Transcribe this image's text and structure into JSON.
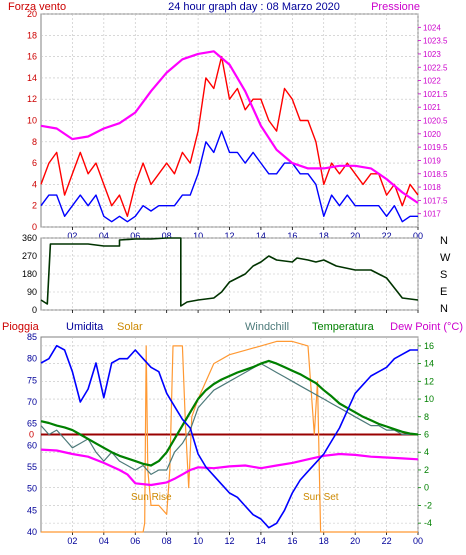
{
  "header": {
    "left_title": "Forza vento",
    "center_title": "24 hour graph day : 08 Marzo 2020",
    "right_title": "Pressione"
  },
  "panel3_header": {
    "pioggia": "Pioggia",
    "umidita": "Umidita",
    "solar": "Solar",
    "windchill": "Windchill",
    "temperatura": "Temperatura",
    "dewpoint": "Dew Point (°C)"
  },
  "annotations": {
    "sunrise": "Sun Rise",
    "sunset": "Sun Set"
  },
  "colors": {
    "wind_gust": "#ff0000",
    "wind_avg": "#0000ff",
    "pressure": "#ff00ff",
    "direction": "#003300",
    "humidity": "#0000ff",
    "solar": "#ff9933",
    "windchill": "#4d7a7a",
    "temperature": "#008000",
    "dewpoint": "#ff00ff",
    "rain": "#990000",
    "axis_left": "#cc0000",
    "axis_right": "#cc00cc",
    "axis_blue": "#000099",
    "axis_green": "#008000",
    "grid": "#c0c0c0"
  },
  "chart_data": [
    {
      "type": "line",
      "title": "24 hour graph day : 08 Marzo 2020",
      "x_ticks": [
        "02",
        "04",
        "06",
        "08",
        "10",
        "12",
        "14",
        "16",
        "18",
        "20",
        "22",
        "00"
      ],
      "xlim": [
        0,
        24
      ],
      "ylabel_left": "Forza vento",
      "ylim_left": [
        0,
        20
      ],
      "y_ticks_left": [
        0,
        2,
        4,
        6,
        8,
        10,
        12,
        14,
        16,
        18,
        20
      ],
      "ylabel_right": "Pressione",
      "ylim_right": [
        1016.5,
        1024.5
      ],
      "y_ticks_right": [
        1017,
        1017.5,
        1018,
        1018.5,
        1019,
        1019.5,
        1020,
        1020.5,
        1021,
        1021.5,
        1022,
        1022.5,
        1023,
        1023.5,
        1024
      ],
      "series": [
        {
          "name": "Forza vento",
          "color_key": "wind_gust",
          "x": [
            0,
            0.5,
            1,
            1.5,
            2,
            2.5,
            3,
            3.5,
            4,
            4.5,
            5,
            5.5,
            6,
            6.5,
            7,
            7.5,
            8,
            8.5,
            9,
            9.5,
            10,
            10.5,
            11,
            11.5,
            12,
            12.5,
            13,
            13.5,
            14,
            14.5,
            15,
            15.5,
            16,
            16.5,
            17,
            17.5,
            18,
            18.5,
            19,
            19.5,
            20,
            20.5,
            21,
            21.5,
            22,
            22.5,
            23,
            23.5,
            24
          ],
          "y": [
            4,
            6,
            7,
            3,
            5,
            7,
            5,
            6,
            4,
            2,
            3,
            1,
            4,
            6,
            4,
            5,
            6,
            5,
            7,
            6,
            9,
            14,
            13,
            16,
            12,
            13,
            11,
            12,
            12,
            10,
            9,
            13,
            12,
            10,
            10,
            8,
            4,
            6,
            5,
            6,
            5,
            4,
            5,
            5,
            3,
            4,
            2,
            4,
            3
          ]
        },
        {
          "name": "",
          "color_key": "wind_avg",
          "x": [
            0,
            0.5,
            1,
            1.5,
            2,
            2.5,
            3,
            3.5,
            4,
            4.5,
            5,
            5.5,
            6,
            6.5,
            7,
            7.5,
            8,
            8.5,
            9,
            9.5,
            10,
            10.5,
            11,
            11.5,
            12,
            12.5,
            13,
            13.5,
            14,
            14.5,
            15,
            15.5,
            16,
            16.5,
            17,
            17.5,
            18,
            18.5,
            19,
            19.5,
            20,
            20.5,
            21,
            21.5,
            22,
            22.5,
            23,
            23.5,
            24
          ],
          "y": [
            2,
            3,
            3,
            1,
            2,
            3,
            2,
            3,
            1,
            0.5,
            1,
            0.5,
            1,
            2,
            1.5,
            2,
            2,
            2,
            3,
            3,
            5,
            8,
            7,
            9,
            7,
            7,
            6,
            7,
            6,
            5,
            5,
            6,
            6,
            5,
            5,
            4,
            1,
            3,
            2,
            3,
            2,
            2,
            2,
            2,
            1,
            2,
            0.5,
            1,
            1
          ]
        },
        {
          "name": "Pressione",
          "axis": "right",
          "color_key": "pressure",
          "x": [
            0,
            1,
            2,
            3,
            4,
            5,
            6,
            7,
            8,
            9,
            10,
            11,
            12,
            13,
            14,
            15,
            16,
            17,
            18,
            19,
            20,
            21,
            22,
            23,
            24
          ],
          "y": [
            1020.3,
            1020.2,
            1019.8,
            1019.9,
            1020.2,
            1020.4,
            1020.8,
            1021.6,
            1022.3,
            1022.8,
            1023.0,
            1023.1,
            1022.6,
            1021.6,
            1020.3,
            1019.4,
            1018.9,
            1018.7,
            1018.7,
            1018.8,
            1018.8,
            1018.7,
            1018.3,
            1017.8,
            1017.4
          ]
        }
      ]
    },
    {
      "type": "line",
      "xlim": [
        0,
        24
      ],
      "ylim": [
        0,
        360
      ],
      "y_ticks": [
        0,
        90,
        180,
        270,
        360
      ],
      "right_labels": [
        "N",
        "W",
        "S",
        "E",
        "N"
      ],
      "series": [
        {
          "name": "",
          "color_key": "direction",
          "x": [
            0,
            0.4,
            0.6,
            2,
            3,
            4,
            5,
            5,
            6,
            7,
            8,
            8.9,
            8.9,
            9.3,
            10,
            11,
            11.5,
            12,
            13,
            13.5,
            14,
            14.5,
            15,
            16,
            16.3,
            17,
            17.5,
            18,
            18.8,
            20,
            21,
            21.5,
            22,
            23,
            24
          ],
          "y": [
            50,
            30,
            330,
            330,
            330,
            320,
            320,
            350,
            355,
            355,
            360,
            360,
            20,
            40,
            50,
            60,
            90,
            140,
            180,
            220,
            240,
            270,
            250,
            240,
            260,
            250,
            240,
            250,
            220,
            200,
            200,
            180,
            160,
            60,
            50
          ]
        }
      ]
    },
    {
      "type": "line",
      "xlim": [
        0,
        24
      ],
      "ylabel_left": "Umidita",
      "ylim_left": [
        40,
        85
      ],
      "y_ticks_left": [
        40,
        45,
        50,
        55,
        60,
        65,
        70,
        75,
        80,
        85
      ],
      "ylabel_right": "Dew Point (°C)",
      "ylim_right": [
        -5,
        17
      ],
      "y_ticks_right": [
        -4,
        -2,
        0,
        2,
        4,
        6,
        8,
        10,
        12,
        14,
        16
      ],
      "rain_label": "0",
      "series": [
        {
          "name": "Umidita",
          "axis": "left",
          "color_key": "humidity",
          "x": [
            0,
            0.5,
            1,
            1.5,
            2,
            2.5,
            3,
            3.5,
            4,
            4.5,
            5,
            5.5,
            6,
            6.5,
            7,
            7.5,
            8,
            8.5,
            9,
            9.5,
            10,
            10.5,
            11,
            11.5,
            12,
            12.5,
            13,
            13.5,
            14,
            14.5,
            15,
            15.5,
            16,
            16.5,
            17,
            17.5,
            18,
            18.5,
            19,
            19.5,
            20,
            20.5,
            21,
            21.5,
            22,
            22.5,
            23,
            23.5,
            24
          ],
          "y": [
            79,
            80,
            83,
            82,
            77,
            70,
            73,
            79,
            71,
            79,
            80,
            80,
            82,
            80,
            78,
            77,
            72,
            69,
            66,
            64,
            58,
            55,
            53,
            51,
            49,
            48,
            46,
            44,
            43,
            41,
            42,
            45,
            49,
            52,
            54,
            56,
            58,
            61,
            64,
            68,
            72,
            74,
            76,
            77,
            78,
            80,
            81,
            82,
            82
          ]
        },
        {
          "name": "Solar",
          "axis": "right",
          "color_key": "solar",
          "x": [
            0,
            6.5,
            6.6,
            6.7,
            6.8,
            7,
            7.5,
            8,
            8.2,
            8.4,
            9,
            9.2,
            9.4,
            9.6,
            10,
            11,
            12,
            13,
            14,
            15,
            16,
            17,
            17.4,
            17.6,
            17.8,
            18,
            24
          ],
          "y": [
            -5,
            -5,
            -4,
            16,
            2,
            -2,
            -2,
            -3,
            2,
            16,
            16,
            7,
            0,
            8,
            10,
            14,
            15,
            15.5,
            16,
            16.5,
            16.5,
            16,
            6,
            12,
            -5,
            -5,
            -5
          ]
        },
        {
          "name": "Windchill",
          "axis": "right",
          "color_key": "windchill",
          "x": [
            0,
            0.5,
            1,
            1.5,
            2,
            2.5,
            3,
            3.5,
            4,
            4.5,
            5,
            5.5,
            6,
            6.5,
            7,
            7.5,
            8,
            8.5,
            9,
            9.5,
            10,
            10.5,
            11,
            11.5,
            12,
            12.5,
            13,
            13.5,
            14,
            14.5,
            15,
            15.5,
            16,
            16.5,
            17,
            17.5,
            18,
            18.5,
            19,
            19.5,
            20,
            20.5,
            21,
            21.5,
            22,
            22.5,
            23,
            23.5,
            24
          ],
          "y": [
            7,
            6,
            6.5,
            5.5,
            4.5,
            5,
            5.5,
            4,
            3,
            4,
            3,
            2.5,
            2,
            2.5,
            1.5,
            2,
            2,
            4,
            5,
            6.5,
            9,
            10,
            11,
            11.5,
            12,
            12.5,
            13,
            13.5,
            14,
            13.5,
            13,
            12.5,
            12,
            11.5,
            11,
            10.5,
            10,
            9.5,
            9,
            8.5,
            8,
            7.5,
            7,
            7,
            6.5,
            6.5,
            6,
            6,
            6
          ]
        },
        {
          "name": "Temperatura",
          "axis": "right",
          "color_key": "temperature",
          "x": [
            0,
            0.5,
            1,
            1.5,
            2,
            2.5,
            3,
            3.5,
            4,
            4.5,
            5,
            5.5,
            6,
            6.5,
            7,
            7.5,
            8,
            8.5,
            9,
            9.5,
            10,
            10.5,
            11,
            11.5,
            12,
            12.5,
            13,
            13.5,
            14,
            14.5,
            15,
            15.5,
            16,
            16.5,
            17,
            17.5,
            18,
            18.5,
            19,
            19.5,
            20,
            20.5,
            21,
            21.5,
            22,
            22.5,
            23,
            23.5,
            24
          ],
          "y": [
            7.5,
            7.3,
            7,
            6.8,
            6.5,
            6,
            5.5,
            5,
            4.5,
            4,
            3.6,
            3.3,
            3,
            2.7,
            2.5,
            3,
            4,
            5.5,
            7,
            8.5,
            10,
            11,
            11.7,
            12.2,
            12.6,
            13,
            13.3,
            13.6,
            14,
            14.3,
            14,
            13.6,
            13.2,
            12.8,
            12.3,
            11.8,
            11,
            10.3,
            9.5,
            9,
            8.5,
            8,
            7.6,
            7.2,
            6.9,
            6.6,
            6.3,
            6.1,
            6
          ]
        },
        {
          "name": "Dew Point",
          "axis": "right",
          "color_key": "dewpoint",
          "x": [
            0,
            1,
            2,
            3,
            4,
            5,
            5.5,
            6,
            7,
            8,
            8.5,
            9,
            9.5,
            10,
            11,
            12,
            13,
            14,
            15,
            16,
            17,
            18,
            19,
            20,
            21,
            22,
            23,
            24
          ],
          "y": [
            4.3,
            4.2,
            3.8,
            3.5,
            2.8,
            2,
            1.5,
            0.5,
            0.3,
            0.6,
            1,
            1.5,
            2,
            2.3,
            2.2,
            2.4,
            2.5,
            2.2,
            2.5,
            2.8,
            3.2,
            3.6,
            3.8,
            3.7,
            3.5,
            3.4,
            3.3,
            3.2
          ]
        }
      ]
    }
  ]
}
